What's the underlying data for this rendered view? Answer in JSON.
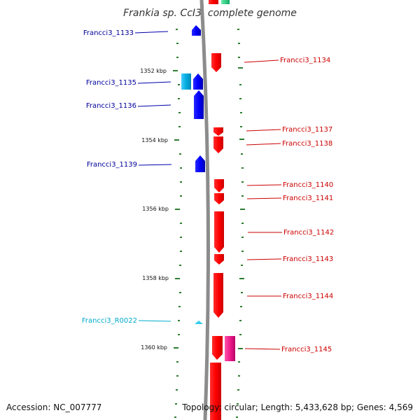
{
  "title": "Frankia sp. CcI3, complete genome",
  "footer": {
    "accession": "Accession: NC_007777",
    "summary": "Topology: circular; Length: 5,433,628 bp; Genes: 4,569"
  },
  "colors": {
    "forward_cds": "#ff0000",
    "reverse_cds": "#0000ff",
    "reverse_cds_light": "#00aadd",
    "rna": "#00bbdd",
    "other_feature": "#ee1c8c",
    "top_feature": "#22cc88",
    "tick": "#2e7d32",
    "backbone": "#888888",
    "forward_label": "#cc0000",
    "reverse_label": "#000099",
    "rna_label": "#00aacc"
  },
  "scale": {
    "unit": "kbp",
    "labels": [
      "1352 kbp",
      "1354 kbp",
      "1356 kbp",
      "1358 kbp",
      "1360 kbp"
    ]
  },
  "genes": [
    {
      "name": "Francci3_1133",
      "strand": "reverse",
      "type": "cds"
    },
    {
      "name": "Francci3_1134",
      "strand": "forward",
      "type": "cds"
    },
    {
      "name": "Francci3_1135",
      "strand": "reverse",
      "type": "cds"
    },
    {
      "name": "Francci3_1136",
      "strand": "reverse",
      "type": "cds"
    },
    {
      "name": "Francci3_1137",
      "strand": "forward",
      "type": "cds"
    },
    {
      "name": "Francci3_1138",
      "strand": "forward",
      "type": "cds"
    },
    {
      "name": "Francci3_1139",
      "strand": "reverse",
      "type": "cds"
    },
    {
      "name": "Francci3_1140",
      "strand": "forward",
      "type": "cds"
    },
    {
      "name": "Francci3_1141",
      "strand": "forward",
      "type": "cds"
    },
    {
      "name": "Francci3_1142",
      "strand": "forward",
      "type": "cds"
    },
    {
      "name": "Francci3_1143",
      "strand": "forward",
      "type": "cds"
    },
    {
      "name": "Francci3_R0022",
      "strand": "reverse",
      "type": "rna"
    },
    {
      "name": "Francci3_1144",
      "strand": "forward",
      "type": "cds"
    },
    {
      "name": "Francci3_1145",
      "strand": "forward",
      "type": "cds"
    }
  ]
}
